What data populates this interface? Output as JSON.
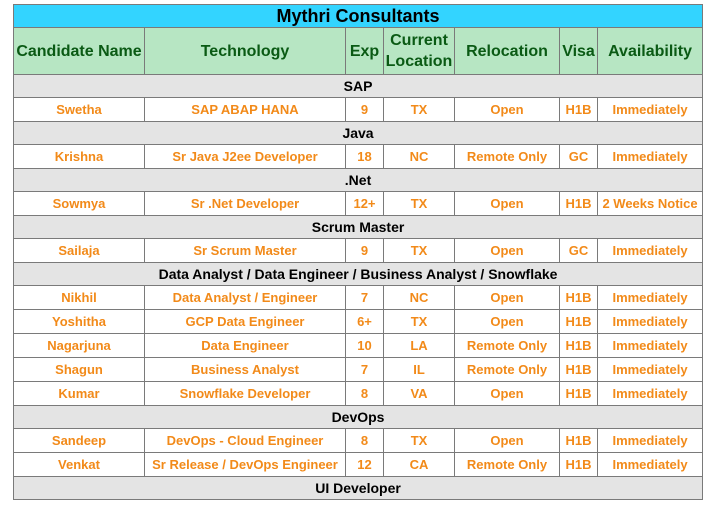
{
  "title": "Mythri Consultants",
  "headers": {
    "name": "Candidate Name",
    "technology": "Technology",
    "exp": "Exp",
    "location_line1": "Current",
    "location_line2": "Location",
    "relocation": "Relocation",
    "visa": "Visa",
    "availability": "Availability"
  },
  "sections": {
    "sap": "SAP",
    "java": "Java",
    "net": ".Net",
    "scrum": "Scrum Master",
    "data": "Data Analyst / Data Engineer / Business Analyst / Snowflake",
    "devops": "DevOps",
    "ui": "UI Developer"
  },
  "rows": [
    {
      "name": "Swetha",
      "technology": "SAP ABAP HANA",
      "exp": "9",
      "location": "TX",
      "relocation": "Open",
      "visa": "H1B",
      "availability": "Immediately"
    },
    {
      "name": "Krishna",
      "technology": "Sr Java J2ee Developer",
      "exp": "18",
      "location": "NC",
      "relocation": "Remote Only",
      "visa": "GC",
      "availability": "Immediately"
    },
    {
      "name": "Sowmya",
      "technology": "Sr .Net Developer",
      "exp": "12+",
      "location": "TX",
      "relocation": "Open",
      "visa": "H1B",
      "availability": "2 Weeks Notice"
    },
    {
      "name": "Sailaja",
      "technology": "Sr Scrum Master",
      "exp": "9",
      "location": "TX",
      "relocation": "Open",
      "visa": "GC",
      "availability": "Immediately"
    },
    {
      "name": "Nikhil",
      "technology": "Data Analyst / Engineer",
      "exp": "7",
      "location": "NC",
      "relocation": "Open",
      "visa": "H1B",
      "availability": "Immediately"
    },
    {
      "name": "Yoshitha",
      "technology": "GCP Data Engineer",
      "exp": "6+",
      "location": "TX",
      "relocation": "Open",
      "visa": "H1B",
      "availability": "Immediately"
    },
    {
      "name": "Nagarjuna",
      "technology": "Data Engineer",
      "exp": "10",
      "location": "LA",
      "relocation": "Remote Only",
      "visa": "H1B",
      "availability": "Immediately"
    },
    {
      "name": "Shagun",
      "technology": "Business Analyst",
      "exp": "7",
      "location": "IL",
      "relocation": "Remote Only",
      "visa": "H1B",
      "availability": "Immediately"
    },
    {
      "name": "Kumar",
      "technology": "Snowflake Developer",
      "exp": "8",
      "location": "VA",
      "relocation": "Open",
      "visa": "H1B",
      "availability": "Immediately"
    },
    {
      "name": "Sandeep",
      "technology": "DevOps - Cloud Engineer",
      "exp": "8",
      "location": "TX",
      "relocation": "Open",
      "visa": "H1B",
      "availability": "Immediately"
    },
    {
      "name": "Venkat",
      "technology": "Sr Release / DevOps Engineer",
      "exp": "12",
      "location": "CA",
      "relocation": "Remote Only",
      "visa": "H1B",
      "availability": "Immediately"
    }
  ]
}
